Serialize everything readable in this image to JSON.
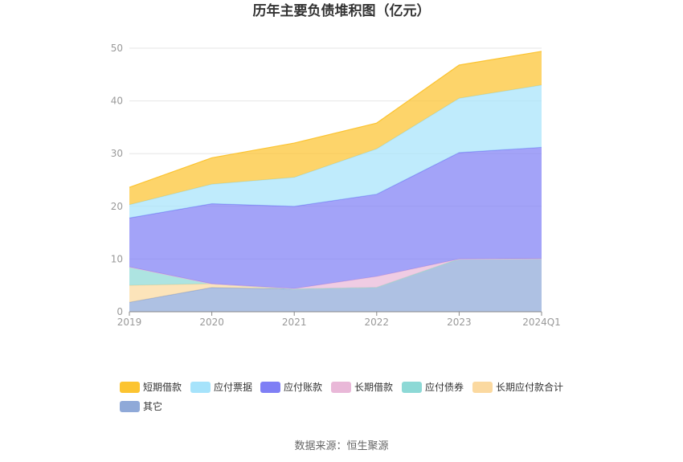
{
  "chart_data": {
    "type": "area",
    "stacked": true,
    "title": "历年主要负债堆积图（亿元）",
    "categories": [
      "2019",
      "2020",
      "2021",
      "2022",
      "2023",
      "2024Q1"
    ],
    "ylim": [
      0,
      50
    ],
    "yticks": [
      "0",
      "10",
      "20",
      "30",
      "40",
      "50"
    ],
    "grid": true,
    "legend_position": "bottom",
    "series": [
      {
        "name": "其它",
        "color": "#8fa9d8",
        "values": [
          1.8,
          4.6,
          4.3,
          4.6,
          10.0,
          10.1
        ]
      },
      {
        "name": "长期应付款合计",
        "color": "#fbd9a0",
        "values": [
          3.2,
          0.7,
          0.0,
          0.0,
          0.0,
          0.0
        ]
      },
      {
        "name": "应付债券",
        "color": "#8dd9d6",
        "values": [
          3.5,
          0.0,
          0.0,
          0.0,
          0.0,
          0.0
        ]
      },
      {
        "name": "长期借款",
        "color": "#e9b8d8",
        "values": [
          0.0,
          0.0,
          0.1,
          2.1,
          0.0,
          0.0
        ]
      },
      {
        "name": "应付账款",
        "color": "#7f7ff5",
        "values": [
          9.3,
          15.2,
          15.6,
          15.6,
          20.2,
          21.1
        ]
      },
      {
        "name": "应付票据",
        "color": "#a6e3fb",
        "values": [
          2.5,
          3.7,
          5.5,
          8.6,
          10.3,
          11.8
        ]
      },
      {
        "name": "短期借款",
        "color": "#fcc431",
        "values": [
          3.3,
          5.0,
          6.5,
          4.9,
          6.3,
          6.4
        ]
      }
    ],
    "legend_order": [
      "短期借款",
      "应付票据",
      "应付账款",
      "长期借款",
      "应付债券",
      "长期应付款合计",
      "其它"
    ]
  },
  "source": "数据来源：恒生聚源"
}
